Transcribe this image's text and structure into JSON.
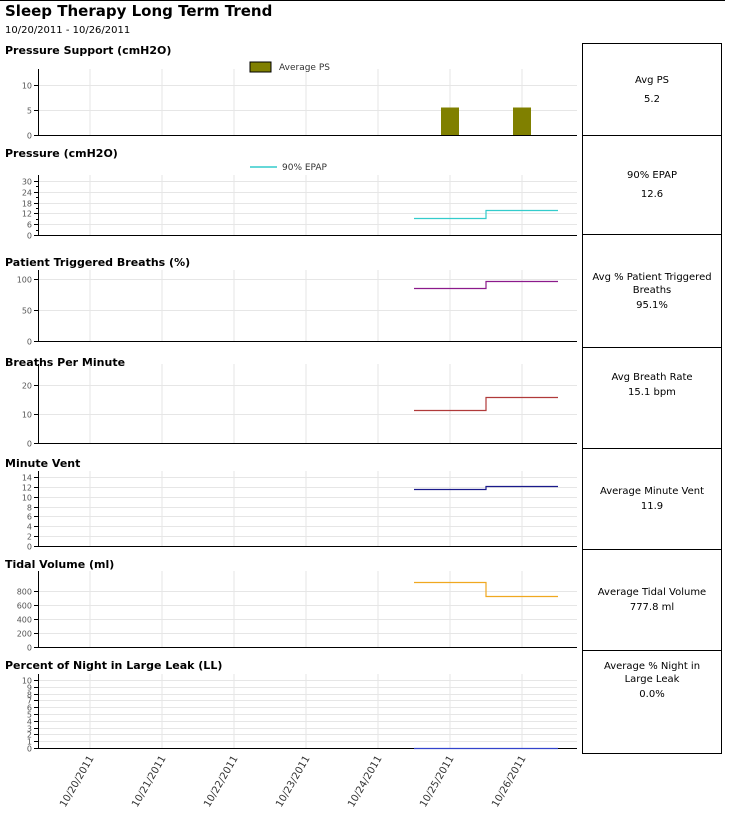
{
  "header": {
    "title": "Sleep Therapy Long Term Trend",
    "date_range": "10/20/2011 - 10/26/2011"
  },
  "summary": {
    "avg_ps": {
      "label": "Avg PS",
      "value": "5.2"
    },
    "epap_90": {
      "label": "90% EPAP",
      "value": "12.6"
    },
    "patient_triggered": {
      "label": "Avg % Patient Triggered Breaths",
      "value": "95.1%"
    },
    "breath_rate": {
      "label": "Avg Breath Rate",
      "value": "15.1 bpm"
    },
    "minute_vent": {
      "label": "Average Minute Vent",
      "value": "11.9"
    },
    "tidal_volume": {
      "label": "Average Tidal Volume",
      "value": "777.8 ml"
    },
    "large_leak": {
      "label": "Average % Night in Large Leak",
      "value": "0.0%"
    }
  },
  "chart_data": [
    {
      "id": "ps",
      "type": "bar",
      "title": "Pressure Support (cmH2O)",
      "legend": {
        "label": "Average PS",
        "kind": "box"
      },
      "ylim": [
        0,
        12
      ],
      "yticks": [
        0,
        5,
        10
      ],
      "color": "#808000",
      "points": [
        {
          "x": 5,
          "y": 5.5
        },
        {
          "x": 6,
          "y": 5.5
        }
      ]
    },
    {
      "id": "epap",
      "type": "line",
      "title": "Pressure (cmH2O)",
      "legend": {
        "label": "90% EPAP",
        "kind": "line"
      },
      "ylim": [
        0,
        30
      ],
      "yticks": [
        0,
        6,
        12,
        18,
        24,
        30
      ],
      "minor": 3,
      "color": "#33cccc",
      "points": [
        {
          "x": 4.5,
          "y": 9.5
        },
        {
          "x": 5.5,
          "y": 9.5
        },
        {
          "x": 5.5,
          "y": 14
        },
        {
          "x": 6.5,
          "y": 14
        }
      ]
    },
    {
      "id": "ptb",
      "type": "line",
      "title": "Patient Triggered Breaths (%)",
      "ylim": [
        0,
        105
      ],
      "yticks": [
        0,
        50,
        100
      ],
      "color": "#8b1a8b",
      "points": [
        {
          "x": 4.5,
          "y": 86
        },
        {
          "x": 5.5,
          "y": 86
        },
        {
          "x": 5.5,
          "y": 97
        },
        {
          "x": 6.5,
          "y": 97
        }
      ]
    },
    {
      "id": "bpm",
      "type": "line",
      "title": "Breaths Per Minute",
      "ylim": [
        0,
        25
      ],
      "yticks": [
        0,
        10,
        20
      ],
      "color": "#b03a3a",
      "points": [
        {
          "x": 4.5,
          "y": 11.3
        },
        {
          "x": 5.5,
          "y": 11.3
        },
        {
          "x": 5.5,
          "y": 15.8
        },
        {
          "x": 6.5,
          "y": 15.8
        }
      ]
    },
    {
      "id": "mv",
      "type": "line",
      "title": "Minute Vent",
      "ylim": [
        0,
        14
      ],
      "yticks": [
        0,
        2,
        4,
        6,
        8,
        10,
        12,
        14
      ],
      "color": "#1a1a8b",
      "points": [
        {
          "x": 4.5,
          "y": 11.5
        },
        {
          "x": 5.5,
          "y": 11.5
        },
        {
          "x": 5.5,
          "y": 12.1
        },
        {
          "x": 6.5,
          "y": 12.1
        }
      ]
    },
    {
      "id": "tv",
      "type": "line",
      "title": "Tidal Volume (ml)",
      "ylim": [
        0,
        1000
      ],
      "yticks": [
        0,
        200,
        400,
        600,
        800
      ],
      "color": "#f0a820",
      "points": [
        {
          "x": 4.5,
          "y": 930
        },
        {
          "x": 5.5,
          "y": 930
        },
        {
          "x": 5.5,
          "y": 730
        },
        {
          "x": 6.5,
          "y": 730
        }
      ]
    },
    {
      "id": "ll",
      "type": "line",
      "title": "Percent of Night in Large Leak (LL)",
      "ylim": [
        0,
        10
      ],
      "yticks": [
        0,
        1,
        2,
        3,
        4,
        5,
        6,
        7,
        8,
        9,
        10
      ],
      "color": "#3344cc",
      "points": [
        {
          "x": 4.5,
          "y": 0
        },
        {
          "x": 6.5,
          "y": 0
        }
      ]
    }
  ],
  "x_labels": [
    "10/20/2011",
    "10/21/2011",
    "10/22/2011",
    "10/23/2011",
    "10/24/2011",
    "10/25/2011",
    "10/26/2011"
  ],
  "colors": {
    "grid": "#e6e6e6",
    "axis": "#000000",
    "tick_text": "#555555"
  }
}
